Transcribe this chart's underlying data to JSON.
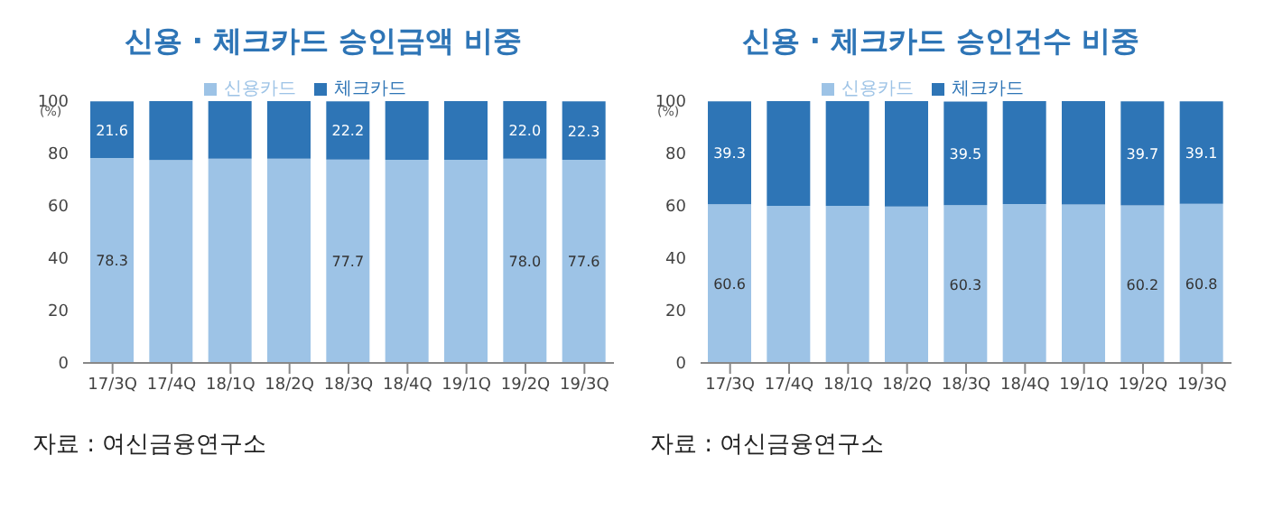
{
  "chart_data": [
    {
      "type": "bar",
      "title": "신용 · 체크카드 승인금액 비중",
      "ylabel": "(%)",
      "annotations": [
        "자료 : 여신금융연구소"
      ],
      "stacked": true,
      "legend": "top",
      "grid": false,
      "categories": [
        "17/3Q",
        "17/4Q",
        "18/1Q",
        "18/2Q",
        "18/3Q",
        "18/4Q",
        "19/1Q",
        "19/2Q",
        "19/3Q"
      ],
      "ylim": [
        0,
        100
      ],
      "yticks": [
        0,
        20,
        40,
        60,
        80,
        100
      ],
      "series": [
        {
          "name": "신용카드",
          "color": "#9dc3e6",
          "values": [
            78.3,
            77.5,
            78,
            78,
            77.7,
            77.6,
            77.6,
            78.0,
            77.6
          ],
          "value_labels": [
            "78.3",
            null,
            null,
            null,
            "77.7",
            null,
            null,
            "78.0",
            "77.6"
          ]
        },
        {
          "name": "체크카드",
          "color": "#2e75b6",
          "values": [
            21.6,
            22.5,
            22,
            22,
            22.2,
            22.4,
            22.4,
            22.0,
            22.3
          ],
          "value_labels": [
            "21.6",
            null,
            null,
            null,
            "22.2",
            null,
            null,
            "22.0",
            "22.3"
          ]
        }
      ]
    },
    {
      "type": "bar",
      "title": "신용 · 체크카드 승인건수 비중",
      "ylabel": "(%)",
      "annotations": [
        "자료 : 여신금융연구소"
      ],
      "stacked": true,
      "legend": "top",
      "grid": false,
      "categories": [
        "17/3Q",
        "17/4Q",
        "18/1Q",
        "18/2Q",
        "18/3Q",
        "18/4Q",
        "19/1Q",
        "19/2Q",
        "19/3Q"
      ],
      "ylim": [
        0,
        100
      ],
      "yticks": [
        0,
        20,
        40,
        60,
        80,
        100
      ],
      "series": [
        {
          "name": "신용카드",
          "color": "#9dc3e6",
          "values": [
            60.6,
            60,
            60,
            59.7,
            60.3,
            60.7,
            60.5,
            60.2,
            60.8
          ],
          "value_labels": [
            "60.6",
            null,
            null,
            null,
            "60.3",
            null,
            null,
            "60.2",
            "60.8"
          ]
        },
        {
          "name": "체크카드",
          "color": "#2e75b6",
          "values": [
            39.3,
            40,
            40,
            40.3,
            39.5,
            39.3,
            39.5,
            39.7,
            39.1
          ],
          "value_labels": [
            "39.3",
            null,
            null,
            null,
            "39.5",
            null,
            null,
            "39.7",
            "39.1"
          ]
        }
      ]
    }
  ]
}
